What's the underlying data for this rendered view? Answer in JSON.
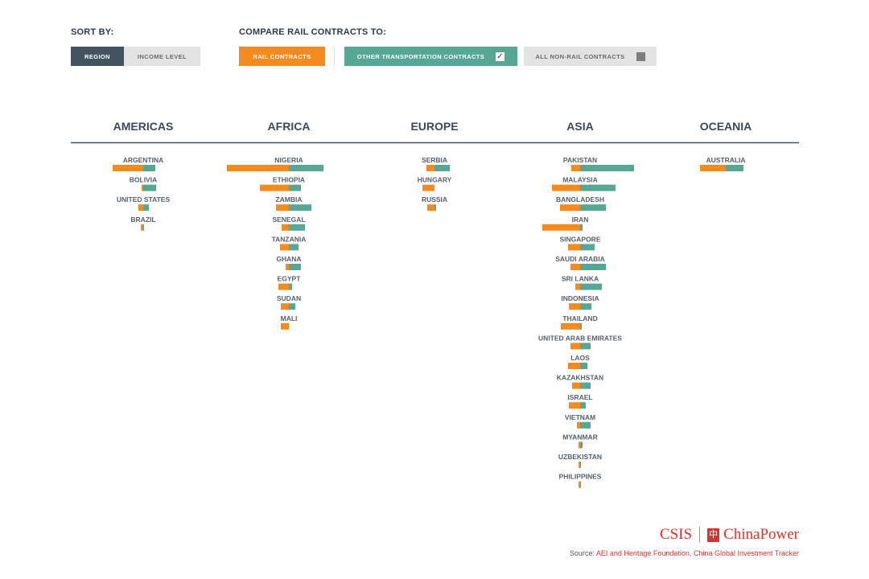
{
  "controls": {
    "sort_by_label": "SORT BY:",
    "sort_options": [
      "REGION",
      "INCOME LEVEL"
    ],
    "compare_label": "COMPARE RAIL CONTRACTS TO:",
    "compare_options": [
      "RAIL CONTRACTS",
      "OTHER TRANSPORTATION CONTRACTS",
      "ALL NON-RAIL CONTRACTS"
    ],
    "checkmark": "✓"
  },
  "footer": {
    "logo_left": "CSIS",
    "logo_right": "ChinaPower",
    "logo_seal": "中",
    "source_prefix": "Source: ",
    "source_link": "AEI and Heritage Foundation, China Global Investment Tracker"
  },
  "colors": {
    "rail": "#f58a1f",
    "other": "#57a795",
    "axis": "#44525e"
  },
  "chart_data": {
    "type": "bar",
    "title": "",
    "series": [
      {
        "name": "Rail contracts",
        "color": "#f58a1f"
      },
      {
        "name": "Other transportation contracts",
        "color": "#57a795"
      }
    ],
    "regions": [
      {
        "name": "AMERICAS",
        "countries": [
          {
            "name": "ARGENTINA",
            "rail": 38,
            "other": 15
          },
          {
            "name": "BOLIVIA",
            "rail": 2,
            "other": 16
          },
          {
            "name": "UNITED STATES",
            "rail": 6,
            "other": 7
          },
          {
            "name": "BRAZIL",
            "rail": 3,
            "other": 1
          }
        ]
      },
      {
        "name": "AFRICA",
        "countries": [
          {
            "name": "NIGERIA",
            "rail": 77,
            "other": 43
          },
          {
            "name": "ETHIOPIA",
            "rail": 36,
            "other": 15
          },
          {
            "name": "ZAMBIA",
            "rail": 16,
            "other": 28
          },
          {
            "name": "SENEGAL",
            "rail": 9,
            "other": 20
          },
          {
            "name": "TANZANIA",
            "rail": 11,
            "other": 12
          },
          {
            "name": "GHANA",
            "rail": 4,
            "other": 15
          },
          {
            "name": "EGYPT",
            "rail": 13,
            "other": 4
          },
          {
            "name": "SUDAN",
            "rail": 10,
            "other": 8
          },
          {
            "name": "MALI",
            "rail": 10,
            "other": 0
          }
        ]
      },
      {
        "name": "EUROPE",
        "countries": [
          {
            "name": "SERBIA",
            "rail": 10,
            "other": 19
          },
          {
            "name": "HUNGARY",
            "rail": 15,
            "other": 0
          },
          {
            "name": "RUSSIA",
            "rail": 9,
            "other": 2
          }
        ]
      },
      {
        "name": "ASIA",
        "countries": [
          {
            "name": "PAKISTAN",
            "rail": 11,
            "other": 67
          },
          {
            "name": "MALAYSIA",
            "rail": 35,
            "other": 44
          },
          {
            "name": "BANGLADESH",
            "rail": 25,
            "other": 32
          },
          {
            "name": "IRAN",
            "rail": 47,
            "other": 3
          },
          {
            "name": "SINGAPORE",
            "rail": 15,
            "other": 18
          },
          {
            "name": "SAUDI ARABIA",
            "rail": 12,
            "other": 32
          },
          {
            "name": "SRI LANKA",
            "rail": 6,
            "other": 27
          },
          {
            "name": "INDONESIA",
            "rail": 14,
            "other": 14
          },
          {
            "name": "THAILAND",
            "rail": 24,
            "other": 2
          },
          {
            "name": "UNITED ARAB EMIRATES",
            "rail": 12,
            "other": 13
          },
          {
            "name": "LAOS",
            "rail": 15,
            "other": 9
          },
          {
            "name": "KAZAKHSTAN",
            "rail": 10,
            "other": 13
          },
          {
            "name": "ISRAEL",
            "rail": 14,
            "other": 7
          },
          {
            "name": "VIETNAM",
            "rail": 4,
            "other": 13
          },
          {
            "name": "MYANMAR",
            "rail": 2,
            "other": 3
          },
          {
            "name": "UZBEKISTAN",
            "rail": 2,
            "other": 1
          },
          {
            "name": "PHILIPPINES",
            "rail": 2,
            "other": 1
          }
        ]
      },
      {
        "name": "OCEANIA",
        "countries": [
          {
            "name": "AUSTRALIA",
            "rail": 32,
            "other": 22
          }
        ]
      }
    ]
  }
}
